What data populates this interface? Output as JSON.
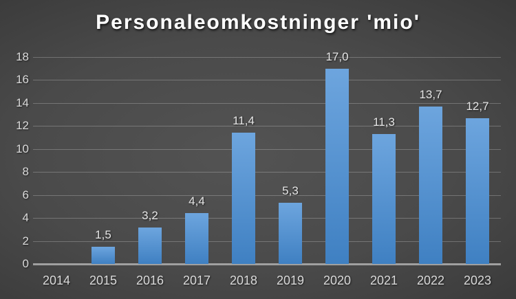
{
  "chart_data": {
    "type": "bar",
    "title": "Personaleomkostninger 'mio'",
    "categories": [
      "2014",
      "2015",
      "2016",
      "2017",
      "2018",
      "2019",
      "2020",
      "2021",
      "2022",
      "2023"
    ],
    "values": [
      null,
      1.5,
      3.2,
      4.4,
      11.4,
      5.3,
      17.0,
      11.3,
      13.7,
      12.7
    ],
    "value_labels": [
      "",
      "1,5",
      "3,2",
      "4,4",
      "11,4",
      "5,3",
      "17,0",
      "11,3",
      "13,7",
      "12,7"
    ],
    "xlabel": "",
    "ylabel": "",
    "ylim": [
      0,
      18
    ],
    "yticks": [
      0,
      2,
      4,
      6,
      8,
      10,
      12,
      14,
      16,
      18
    ],
    "grid": true,
    "legend": false,
    "colors": {
      "bar_gradient_top": "#6da5de",
      "bar_gradient_bottom": "#3f80c2",
      "background_center": "#535353",
      "background_edge": "#262626",
      "gridline": "#8a8a8a",
      "axis_line": "#a0a0a0",
      "tick_label": "#dadada",
      "data_label": "#e6e6e6",
      "title": "#ffffff"
    }
  }
}
